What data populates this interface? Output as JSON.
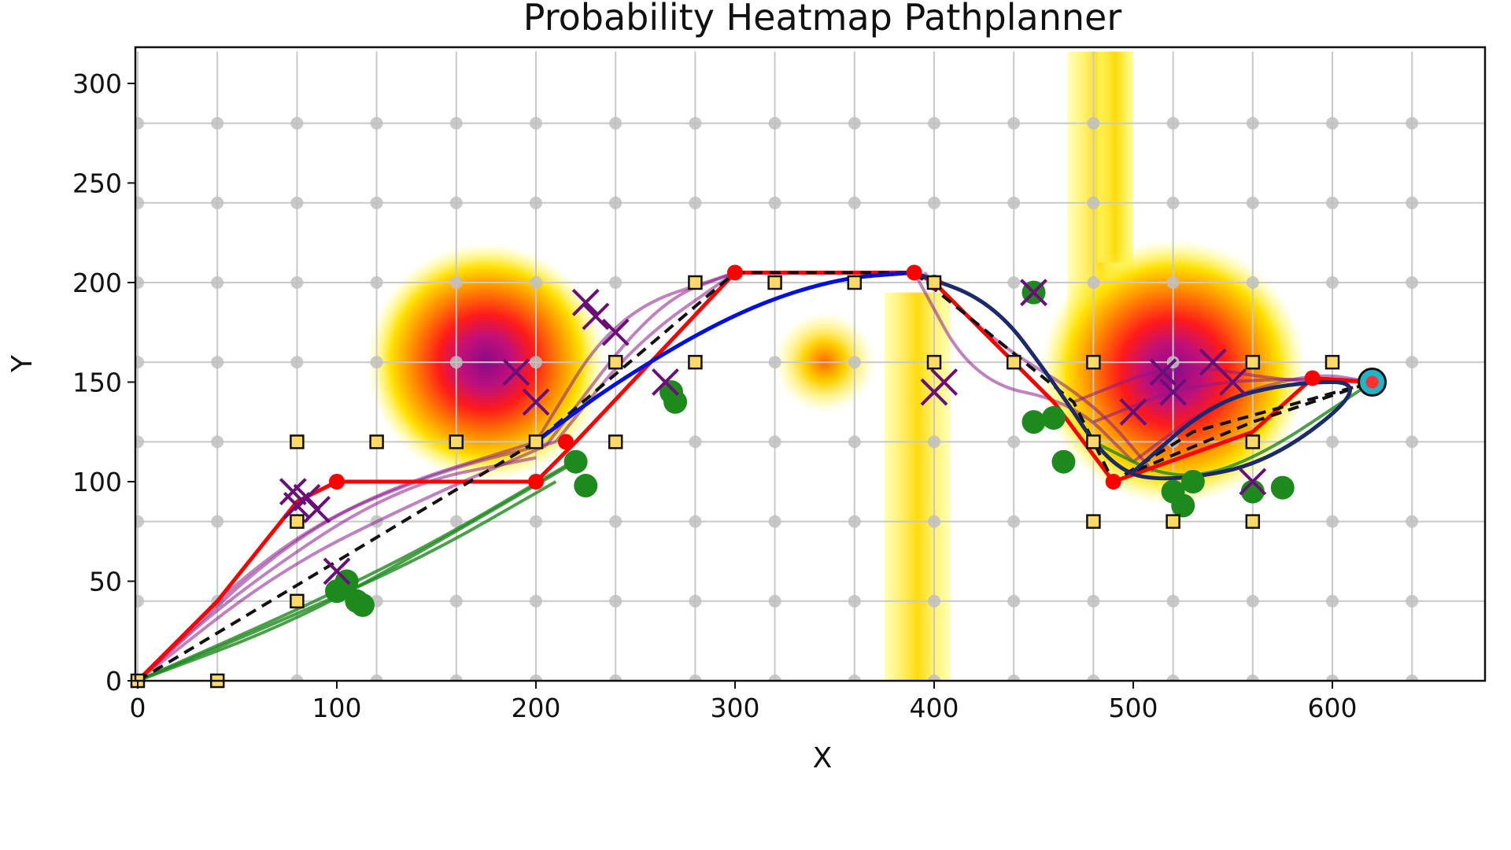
{
  "chart_data": {
    "type": "line",
    "title": "Probability Heatmap Pathplanner",
    "xlabel": "X",
    "ylabel": "Y",
    "xlim": [
      0,
      680
    ],
    "ylim": [
      0,
      316
    ],
    "xticks": [
      "0",
      "100",
      "200",
      "300",
      "400",
      "500",
      "600"
    ],
    "yticks": [
      "0",
      "50",
      "100",
      "150",
      "200",
      "250",
      "300"
    ],
    "grid": true,
    "grid_spacing": 40,
    "colors": {
      "grid_line": "#c8c8c8",
      "grid_node": "#c0c0c0",
      "red_path": "#ff0000",
      "blue_path": "#0010e0",
      "navy_path": "#1a2a6c",
      "purple_paths": "#8b1a8b",
      "green_paths": "#1e8a1e",
      "waypoint_fill": "#ffd966",
      "goal_fill": "#20b4c8"
    },
    "heat_blobs": [
      {
        "x": 175,
        "y": 160,
        "r": 52,
        "intensity": 1.0
      },
      {
        "x": 345,
        "y": 160,
        "r": 22,
        "intensity": 0.55
      },
      {
        "x": 520,
        "y": 155,
        "r": 58,
        "intensity": 1.0
      }
    ],
    "heat_bands": [
      {
        "x0": 375,
        "x1": 408,
        "y0": 0,
        "y1": 195
      },
      {
        "x0": 467,
        "x1": 500,
        "y0": 160,
        "y1": 316
      },
      {
        "x0": 482,
        "x1": 500,
        "y0": 210,
        "y1": 316
      }
    ],
    "waypoints": [
      [
        0,
        0
      ],
      [
        40,
        0
      ],
      [
        80,
        40
      ],
      [
        80,
        80
      ],
      [
        80,
        120
      ],
      [
        120,
        120
      ],
      [
        160,
        120
      ],
      [
        200,
        120
      ],
      [
        240,
        120
      ],
      [
        240,
        160
      ],
      [
        280,
        160
      ],
      [
        280,
        200
      ],
      [
        320,
        200
      ],
      [
        360,
        200
      ],
      [
        400,
        200
      ],
      [
        400,
        160
      ],
      [
        440,
        160
      ],
      [
        480,
        160
      ],
      [
        480,
        120
      ],
      [
        480,
        80
      ],
      [
        520,
        80
      ],
      [
        560,
        80
      ],
      [
        560,
        120
      ],
      [
        560,
        160
      ],
      [
        600,
        160
      ]
    ],
    "series": [
      {
        "name": "",
        "kind": "red",
        "x": [
          0,
          40,
          80,
          100,
          200,
          220,
          300,
          390,
          400,
          460,
          490,
          560,
          590,
          620
        ],
        "y": [
          0,
          40,
          90,
          100,
          100,
          120,
          205,
          205,
          200,
          140,
          100,
          125,
          152,
          150
        ]
      },
      {
        "name": "",
        "kind": "dashed",
        "x": [
          0,
          100,
          200,
          300,
          390,
          470,
          490,
          530,
          620,
          560,
          500
        ],
        "y": [
          0,
          60,
          120,
          205,
          205,
          140,
          100,
          125,
          150,
          130,
          105
        ]
      },
      {
        "name": "",
        "kind": "blue",
        "x": [
          200,
          240,
          300,
          350,
          390
        ],
        "y": [
          120,
          150,
          185,
          202,
          205
        ]
      },
      {
        "name": "",
        "kind": "navy",
        "x": [
          390,
          430,
          460,
          490,
          520,
          570,
          620,
          580,
          540,
          500
        ],
        "y": [
          205,
          190,
          150,
          105,
          100,
          110,
          150,
          150,
          140,
          105
        ]
      }
    ],
    "purple_crosses": [
      [
        80,
        88
      ],
      [
        85,
        92
      ],
      [
        90,
        86
      ],
      [
        78,
        95
      ],
      [
        100,
        55
      ],
      [
        225,
        190
      ],
      [
        230,
        183
      ],
      [
        240,
        175
      ],
      [
        190,
        155
      ],
      [
        200,
        140
      ],
      [
        265,
        150
      ],
      [
        400,
        145
      ],
      [
        405,
        150
      ],
      [
        450,
        195
      ],
      [
        500,
        135
      ],
      [
        515,
        155
      ],
      [
        520,
        145
      ],
      [
        540,
        160
      ],
      [
        550,
        150
      ],
      [
        560,
        100
      ]
    ],
    "green_blobs": [
      [
        105,
        50
      ],
      [
        110,
        40
      ],
      [
        100,
        45
      ],
      [
        113,
        38
      ],
      [
        220,
        110
      ],
      [
        225,
        98
      ],
      [
        268,
        145
      ],
      [
        270,
        140
      ],
      [
        450,
        195
      ],
      [
        450,
        130
      ],
      [
        460,
        132
      ],
      [
        465,
        110
      ],
      [
        520,
        95
      ],
      [
        525,
        88
      ],
      [
        530,
        100
      ],
      [
        560,
        95
      ],
      [
        575,
        97
      ]
    ],
    "red_dots": [
      [
        100,
        100
      ],
      [
        300,
        205
      ],
      [
        390,
        205
      ],
      [
        400,
        200
      ],
      [
        490,
        100
      ],
      [
        590,
        152
      ],
      [
        200,
        100
      ],
      [
        215,
        120
      ]
    ],
    "goal": [
      620,
      150
    ]
  }
}
